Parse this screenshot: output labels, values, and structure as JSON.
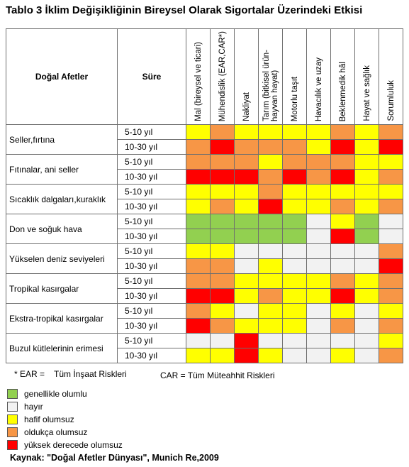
{
  "title": "Tablo 3 İklim Değişikliğinin Bireysel Olarak Sigortalar Üzerindeki Etkisi",
  "table": {
    "hazard_header": "Doğal Afetler",
    "duration_header": "Süre",
    "columns": [
      "Mal (bireysel ve ticari)",
      "Mühendislik (EAR,CAR*)",
      "Nakliyat",
      "Tarım (bitkisel ürün-hayvan hayat)",
      "Motorlu taşıt",
      "Havacılık ve uzay",
      "Beklenmedik hâl",
      "Hayat ve sağlık",
      "Sorumluluk"
    ],
    "hazards": [
      {
        "name": "Seller,fırtına",
        "rows": [
          {
            "duration": "5-10  yıl",
            "cells": [
              "y",
              "o",
              "y",
              "y",
              "y",
              "y",
              "o",
              "y",
              "o"
            ]
          },
          {
            "duration": "10-30  yıl",
            "cells": [
              "o",
              "r",
              "o",
              "o",
              "o",
              "y",
              "r",
              "y",
              "r"
            ]
          }
        ]
      },
      {
        "name": "Fıtınalar, ani seller",
        "rows": [
          {
            "duration": "5-10  yıl",
            "cells": [
              "o",
              "o",
              "o",
              "y",
              "o",
              "o",
              "o",
              "y",
              "y"
            ]
          },
          {
            "duration": "10-30 yıl",
            "cells": [
              "r",
              "r",
              "r",
              "o",
              "r",
              "o",
              "r",
              "y",
              "o"
            ]
          }
        ]
      },
      {
        "name": "Sıcaklık dalgaları,kuraklık",
        "rows": [
          {
            "duration": "5-10  yıl",
            "cells": [
              "y",
              "y",
              "y",
              "o",
              "y",
              "y",
              "y",
              "y",
              "y"
            ]
          },
          {
            "duration": "10-30  yıl",
            "cells": [
              "y",
              "o",
              "y",
              "r",
              "y",
              "y",
              "o",
              "y",
              "o"
            ]
          }
        ]
      },
      {
        "name": "Don ve soğuk hava",
        "rows": [
          {
            "duration": "5-10  yıl",
            "cells": [
              "g",
              "g",
              "g",
              "g",
              "g",
              "w",
              "y",
              "g",
              "w"
            ]
          },
          {
            "duration": "10-30  yıl",
            "cells": [
              "g",
              "g",
              "g",
              "g",
              "g",
              "w",
              "r",
              "g",
              "w"
            ]
          }
        ]
      },
      {
        "name": "Yükselen deniz seviyeleri",
        "rows": [
          {
            "duration": "5-10  yıl",
            "cells": [
              "y",
              "y",
              "w",
              "w",
              "w",
              "w",
              "w",
              "w",
              "o"
            ]
          },
          {
            "duration": "10-30  yıl",
            "cells": [
              "o",
              "o",
              "w",
              "y",
              "w",
              "w",
              "w",
              "w",
              "r"
            ]
          }
        ]
      },
      {
        "name": "Tropikal kasırgalar",
        "rows": [
          {
            "duration": "5-10  yıl",
            "cells": [
              "o",
              "o",
              "y",
              "y",
              "y",
              "y",
              "o",
              "y",
              "o"
            ]
          },
          {
            "duration": "10-30  yıl",
            "cells": [
              "r",
              "r",
              "y",
              "o",
              "y",
              "y",
              "r",
              "y",
              "o"
            ]
          }
        ]
      },
      {
        "name": "Ekstra-tropikal kasırgalar",
        "rows": [
          {
            "duration": "5-10  yıl",
            "cells": [
              "o",
              "y",
              "w",
              "y",
              "y",
              "w",
              "y",
              "w",
              "y"
            ]
          },
          {
            "duration": "10-30  yıl",
            "cells": [
              "r",
              "o",
              "y",
              "y",
              "y",
              "w",
              "o",
              "w",
              "o"
            ]
          }
        ]
      },
      {
        "name": "Buzul kütlelerinin erimesi",
        "rows": [
          {
            "duration": "5-10  yıl",
            "cells": [
              "w",
              "w",
              "r",
              "w",
              "w",
              "w",
              "w",
              "w",
              "y"
            ]
          },
          {
            "duration": "10-30   yıl",
            "cells": [
              "y",
              "y",
              "r",
              "y",
              "w",
              "w",
              "y",
              "w",
              "o"
            ]
          }
        ]
      }
    ]
  },
  "notes": {
    "ear_key": "* EAR =",
    "ear_value": "Tüm İnşaat Riskleri",
    "car": "CAR = Tüm Müteahhit Riskleri"
  },
  "legend": [
    {
      "code": "g",
      "label": "genellikle olumlu",
      "color": "#92d050"
    },
    {
      "code": "w",
      "label": "hayır",
      "color": "#f2f2f2"
    },
    {
      "code": "y",
      "label": "hafif olumsuz",
      "color": "#ffff00"
    },
    {
      "code": "o",
      "label": "oldukça olumsuz",
      "color": "#f79646"
    },
    {
      "code": "r",
      "label": "yüksek derecede olumsuz",
      "color": "#ff0000"
    }
  ],
  "source": "Kaynak: \"Doğal Afetler Dünyası\", Munich Re,2009"
}
